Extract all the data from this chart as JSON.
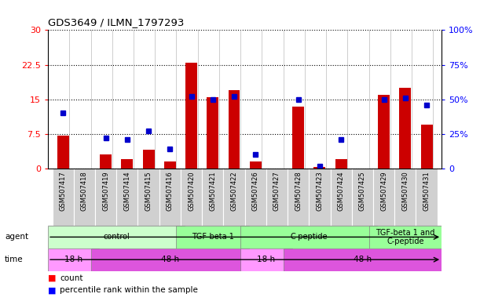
{
  "title": "GDS3649 / ILMN_1797293",
  "samples": [
    "GSM507417",
    "GSM507418",
    "GSM507419",
    "GSM507414",
    "GSM507415",
    "GSM507416",
    "GSM507420",
    "GSM507421",
    "GSM507422",
    "GSM507426",
    "GSM507427",
    "GSM507428",
    "GSM507423",
    "GSM507424",
    "GSM507425",
    "GSM507429",
    "GSM507430",
    "GSM507431"
  ],
  "counts": [
    7.2,
    0.0,
    3.0,
    2.0,
    4.0,
    1.5,
    23.0,
    15.5,
    17.0,
    1.5,
    0.0,
    13.5,
    0.3,
    2.0,
    0.0,
    16.0,
    17.5,
    9.5
  ],
  "percentiles": [
    40,
    0,
    22,
    21,
    27,
    14,
    52,
    50,
    52,
    10,
    0,
    50,
    2,
    21,
    0,
    50,
    51,
    46
  ],
  "ylim_left": [
    0,
    30
  ],
  "ylim_right": [
    0,
    100
  ],
  "yticks_left": [
    0,
    7.5,
    15,
    22.5,
    30
  ],
  "yticks_right": [
    0,
    25,
    50,
    75,
    100
  ],
  "ytick_labels_left": [
    "0",
    "7.5",
    "15",
    "22.5",
    "30"
  ],
  "ytick_labels_right": [
    "0",
    "25%",
    "50%",
    "75%",
    "100%"
  ],
  "bar_color": "#cc0000",
  "dot_color": "#0000cc",
  "sample_band_color": "#d0d0d0",
  "agent_control_color": "#ccffcc",
  "agent_other_color": "#99ff99",
  "time_18h_color": "#ff99ff",
  "time_48h_color": "#dd55dd",
  "agent_groups": [
    {
      "label": "control",
      "start": 0,
      "end": 6,
      "light": true
    },
    {
      "label": "TGF-beta 1",
      "start": 6,
      "end": 9,
      "light": false
    },
    {
      "label": "C-peptide",
      "start": 9,
      "end": 15,
      "light": false
    },
    {
      "label": "TGF-beta 1 and\nC-peptide",
      "start": 15,
      "end": 18,
      "light": false
    }
  ],
  "time_groups": [
    {
      "label": "18 h",
      "start": 0,
      "end": 2,
      "dark": false
    },
    {
      "label": "48 h",
      "start": 2,
      "end": 9,
      "dark": true
    },
    {
      "label": "18 h",
      "start": 9,
      "end": 11,
      "dark": false
    },
    {
      "label": "48 h",
      "start": 11,
      "end": 18,
      "dark": true
    }
  ],
  "legend_count_label": "count",
  "legend_pct_label": "percentile rank within the sample"
}
